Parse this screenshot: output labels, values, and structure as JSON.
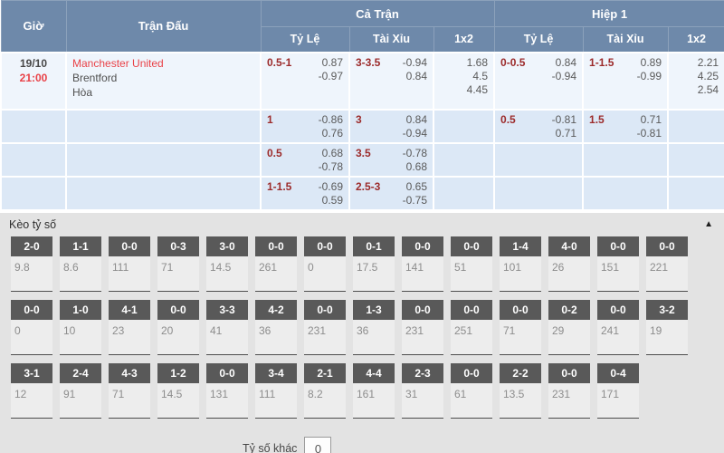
{
  "odds_table": {
    "headers": {
      "time": "Giờ",
      "match": "Trận Đấu",
      "full_match": "Cả Trận",
      "first_half": "Hiệp 1",
      "handicap": "Tỷ Lệ",
      "over_under": "Tài Xỉu",
      "one_x_two": "1x2"
    },
    "match": {
      "date": "19/10",
      "time": "21:00",
      "home": "Manchester United",
      "away": "Brentford",
      "draw": "Hòa"
    },
    "rows": [
      {
        "ft": {
          "hcp": {
            "line": "0.5-1",
            "odds": [
              "0.87",
              "-0.97"
            ]
          },
          "ou": {
            "line": "3-3.5",
            "odds": [
              "-0.94",
              "0.84"
            ]
          },
          "oxt": [
            "1.68",
            "4.5",
            "4.45"
          ]
        },
        "h1": {
          "hcp": {
            "line": "0-0.5",
            "odds": [
              "0.84",
              "-0.94"
            ]
          },
          "ou": {
            "line": "1-1.5",
            "odds": [
              "0.89",
              "-0.99"
            ]
          },
          "oxt": [
            "2.21",
            "4.25",
            "2.54"
          ]
        }
      },
      {
        "ft": {
          "hcp": {
            "line": "1",
            "odds": [
              "-0.86",
              "0.76"
            ]
          },
          "ou": {
            "line": "3",
            "odds": [
              "0.84",
              "-0.94"
            ]
          },
          "oxt": []
        },
        "h1": {
          "hcp": {
            "line": "0.5",
            "odds": [
              "-0.81",
              "0.71"
            ]
          },
          "ou": {
            "line": "1.5",
            "odds": [
              "0.71",
              "-0.81"
            ]
          },
          "oxt": []
        }
      },
      {
        "ft": {
          "hcp": {
            "line": "0.5",
            "odds": [
              "0.68",
              "-0.78"
            ]
          },
          "ou": {
            "line": "3.5",
            "odds": [
              "-0.78",
              "0.68"
            ]
          },
          "oxt": []
        },
        "h1": {
          "hcp": {
            "line": "",
            "odds": []
          },
          "ou": {
            "line": "",
            "odds": []
          },
          "oxt": []
        }
      },
      {
        "ft": {
          "hcp": {
            "line": "1-1.5",
            "odds": [
              "-0.69",
              "0.59"
            ]
          },
          "ou": {
            "line": "2.5-3",
            "odds": [
              "0.65",
              "-0.75"
            ]
          },
          "oxt": []
        },
        "h1": {
          "hcp": {
            "line": "",
            "odds": []
          },
          "ou": {
            "line": "",
            "odds": []
          },
          "oxt": []
        }
      }
    ]
  },
  "score_panel": {
    "title": "Kèo tỷ số",
    "collapse_icon": "▲",
    "rows": [
      [
        {
          "score": "2-0",
          "odds": "9.8"
        },
        {
          "score": "1-1",
          "odds": "8.6"
        },
        {
          "score": "0-0",
          "odds": "111"
        },
        {
          "score": "0-3",
          "odds": "71"
        },
        {
          "score": "3-0",
          "odds": "14.5"
        },
        {
          "score": "0-0",
          "odds": "261"
        },
        {
          "score": "0-0",
          "odds": "0"
        },
        {
          "score": "0-1",
          "odds": "17.5"
        },
        {
          "score": "0-0",
          "odds": "141"
        },
        {
          "score": "0-0",
          "odds": "51"
        },
        {
          "score": "1-4",
          "odds": "101"
        },
        {
          "score": "4-0",
          "odds": "26"
        },
        {
          "score": "0-0",
          "odds": "151"
        },
        {
          "score": "0-0",
          "odds": "221"
        }
      ],
      [
        {
          "score": "0-0",
          "odds": "0"
        },
        {
          "score": "1-0",
          "odds": "10"
        },
        {
          "score": "4-1",
          "odds": "23"
        },
        {
          "score": "0-0",
          "odds": "20"
        },
        {
          "score": "3-3",
          "odds": "41"
        },
        {
          "score": "4-2",
          "odds": "36"
        },
        {
          "score": "0-0",
          "odds": "231"
        },
        {
          "score": "1-3",
          "odds": "36"
        },
        {
          "score": "0-0",
          "odds": "231"
        },
        {
          "score": "0-0",
          "odds": "251"
        },
        {
          "score": "0-0",
          "odds": "71"
        },
        {
          "score": "0-2",
          "odds": "29"
        },
        {
          "score": "0-0",
          "odds": "241"
        },
        {
          "score": "3-2",
          "odds": "19"
        }
      ],
      [
        {
          "score": "3-1",
          "odds": "12"
        },
        {
          "score": "2-4",
          "odds": "91"
        },
        {
          "score": "4-3",
          "odds": "71"
        },
        {
          "score": "1-2",
          "odds": "14.5"
        },
        {
          "score": "0-0",
          "odds": "131"
        },
        {
          "score": "3-4",
          "odds": "111"
        },
        {
          "score": "2-1",
          "odds": "8.2"
        },
        {
          "score": "4-4",
          "odds": "161"
        },
        {
          "score": "2-3",
          "odds": "31"
        },
        {
          "score": "0-0",
          "odds": "61"
        },
        {
          "score": "2-2",
          "odds": "13.5"
        },
        {
          "score": "0-0",
          "odds": "231"
        },
        {
          "score": "0-4",
          "odds": "171"
        }
      ]
    ],
    "other": {
      "label": "Tỷ số khác",
      "value": "0"
    }
  },
  "colors": {
    "header_bg": "#6e89aa",
    "row_bg": "#dce8f6",
    "row_first_bg": "#eff5fc",
    "accent_red": "#e94248",
    "handicap_line_red": "#9c2b2b",
    "odds_gray": "#5a5a5a",
    "score_chip_bg": "#595959",
    "score_card_bg": "#ededed",
    "panel_bg": "#e3e3e3"
  }
}
